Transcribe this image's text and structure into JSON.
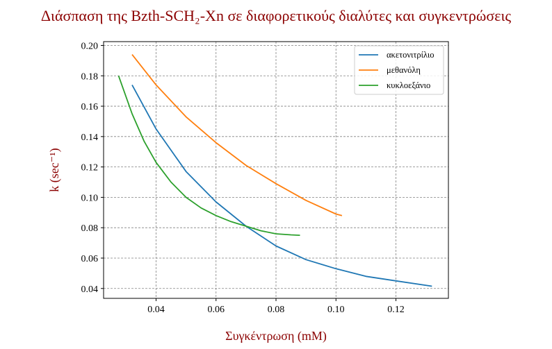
{
  "chart_data": {
    "type": "line",
    "title": "Διάσπαση της Bzth-SCH₂-Xn σε διαφορετικούς διαλύτες και συγκεντρώσεις",
    "xlabel": "Συγκέντρωση (mM)",
    "ylabel": "k (sec⁻¹)",
    "xlim": [
      0.0225,
      0.1375
    ],
    "ylim": [
      0.0335,
      0.2025
    ],
    "x_ticks": [
      "0.04",
      "0.06",
      "0.08",
      "0.10",
      "0.12"
    ],
    "y_ticks": [
      "0.04",
      "0.06",
      "0.08",
      "0.10",
      "0.12",
      "0.14",
      "0.16",
      "0.18",
      "0.20"
    ],
    "grid": true,
    "legend_position": "top-right",
    "series": [
      {
        "name": "ακετονιτρίλιο",
        "color": "#1f77b4",
        "x": [
          0.032,
          0.04,
          0.05,
          0.06,
          0.07,
          0.08,
          0.09,
          0.1,
          0.11,
          0.12,
          0.132
        ],
        "y": [
          0.174,
          0.145,
          0.117,
          0.097,
          0.081,
          0.068,
          0.059,
          0.053,
          0.048,
          0.045,
          0.0415
        ]
      },
      {
        "name": "μεθανόλη",
        "color": "#ff7f0e",
        "x": [
          0.032,
          0.04,
          0.05,
          0.06,
          0.07,
          0.08,
          0.09,
          0.1,
          0.102
        ],
        "y": [
          0.194,
          0.174,
          0.153,
          0.136,
          0.121,
          0.109,
          0.098,
          0.089,
          0.088
        ]
      },
      {
        "name": "κυκλοεξάνιο",
        "color": "#2ca02c",
        "x": [
          0.0275,
          0.032,
          0.036,
          0.04,
          0.045,
          0.05,
          0.055,
          0.06,
          0.065,
          0.07,
          0.075,
          0.08,
          0.085,
          0.088
        ],
        "y": [
          0.18,
          0.155,
          0.137,
          0.123,
          0.11,
          0.1,
          0.093,
          0.088,
          0.084,
          0.081,
          0.078,
          0.076,
          0.0753,
          0.075
        ]
      }
    ]
  }
}
